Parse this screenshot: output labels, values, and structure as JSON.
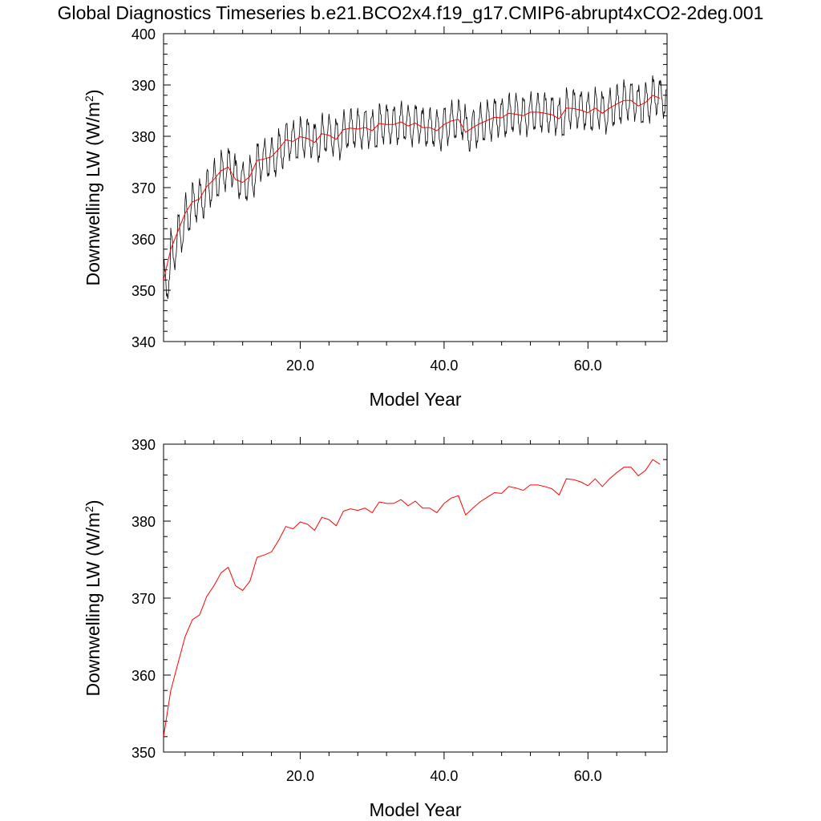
{
  "title": "Global Diagnostics Timeseries b.e21.BCO2x4.f19_g17.CMIP6-abrupt4xCO2-2deg.001",
  "colors": {
    "monthly": "#000000",
    "annual": "#ff0000"
  },
  "chart_data": [
    {
      "type": "line",
      "xlabel": "Model Year",
      "ylabel": "Downwelling LW (W/m2)",
      "ylabel_main": "Downwelling LW (W/m",
      "ylabel_sup": "2",
      "ylabel_end": ")",
      "xlim": [
        1,
        71
      ],
      "ylim": [
        340,
        400
      ],
      "xticks": [
        20,
        40,
        60
      ],
      "xtick_labels": [
        "20.0",
        "40.0",
        "60.0"
      ],
      "yticks": [
        340,
        350,
        360,
        370,
        380,
        390,
        400
      ],
      "ytick_labels": [
        "340",
        "350",
        "360",
        "370",
        "380",
        "390",
        "400"
      ],
      "grid": false,
      "series": [
        {
          "style": "monthly",
          "x_start": 1.0,
          "x_step": 0.08333,
          "values_description": "monthly values: annual mean plus seasonal cycle (~±3.5 W/m2)",
          "annual_means": [
            352,
            358,
            361.5,
            365,
            367.2,
            367.8,
            370.2,
            371.6,
            373.3,
            374.0,
            371.6,
            371.0,
            372.2,
            375.3,
            375.6,
            376.0,
            377.5,
            379.3,
            379.0,
            379.9,
            379.6,
            378.8,
            380.5,
            380.2,
            379.4,
            381.3,
            381.6,
            381.4,
            381.7,
            381.1,
            382.5,
            382.3,
            382.3,
            382.8,
            382.0,
            382.6,
            381.7,
            381.7,
            381.1,
            382.3,
            383.0,
            383.3,
            380.8,
            381.7,
            382.5,
            383.1,
            383.7,
            383.6,
            384.5,
            384.3,
            384.0,
            384.7,
            384.7,
            384.5,
            384.2,
            383.4,
            385.5,
            385.4,
            385.1,
            384.6,
            385.5,
            384.5,
            385.5,
            386.3,
            387.0,
            387.0,
            385.9,
            386.6,
            388.0,
            387.4
          ],
          "seasonal_amplitude": 3.5
        },
        {
          "style": "annual",
          "x_start": 1.0,
          "x_step": 1.0,
          "values": [
            352,
            358,
            361.5,
            365,
            367.2,
            367.8,
            370.2,
            371.6,
            373.3,
            374.0,
            371.6,
            371.0,
            372.2,
            375.3,
            375.6,
            376.0,
            377.5,
            379.3,
            379.0,
            379.9,
            379.6,
            378.8,
            380.5,
            380.2,
            379.4,
            381.3,
            381.6,
            381.4,
            381.7,
            381.1,
            382.5,
            382.3,
            382.3,
            382.8,
            382.0,
            382.6,
            381.7,
            381.7,
            381.1,
            382.3,
            383.0,
            383.3,
            380.8,
            381.7,
            382.5,
            383.1,
            383.7,
            383.6,
            384.5,
            384.3,
            384.0,
            384.7,
            384.7,
            384.5,
            384.2,
            383.4,
            385.5,
            385.4,
            385.1,
            384.6,
            385.5,
            384.5,
            385.5,
            386.3,
            387.0,
            387.0,
            385.9,
            386.6,
            388.0,
            387.4
          ]
        }
      ]
    },
    {
      "type": "line",
      "xlabel": "Model Year",
      "ylabel": "Downwelling LW (W/m2)",
      "ylabel_main": "Downwelling LW (W/m",
      "ylabel_sup": "2",
      "ylabel_end": ")",
      "xlim": [
        1,
        71
      ],
      "ylim": [
        350,
        390
      ],
      "xticks": [
        20,
        40,
        60
      ],
      "xtick_labels": [
        "20.0",
        "40.0",
        "60.0"
      ],
      "yticks": [
        350,
        360,
        370,
        380,
        390
      ],
      "ytick_labels": [
        "350",
        "360",
        "370",
        "380",
        "390"
      ],
      "grid": false,
      "series": [
        {
          "style": "annual",
          "x_start": 1.0,
          "x_step": 1.0,
          "values": [
            352,
            358,
            361.5,
            365,
            367.2,
            367.8,
            370.2,
            371.6,
            373.3,
            374.0,
            371.6,
            371.0,
            372.2,
            375.3,
            375.6,
            376.0,
            377.5,
            379.3,
            379.0,
            379.9,
            379.6,
            378.8,
            380.5,
            380.2,
            379.4,
            381.3,
            381.6,
            381.4,
            381.7,
            381.1,
            382.5,
            382.3,
            382.3,
            382.8,
            382.0,
            382.6,
            381.7,
            381.7,
            381.1,
            382.3,
            383.0,
            383.3,
            380.8,
            381.7,
            382.5,
            383.1,
            383.7,
            383.6,
            384.5,
            384.3,
            384.0,
            384.7,
            384.7,
            384.5,
            384.2,
            383.4,
            385.5,
            385.4,
            385.1,
            384.6,
            385.5,
            384.5,
            385.5,
            386.3,
            387.0,
            387.0,
            385.9,
            386.6,
            388.0,
            387.4
          ]
        }
      ]
    }
  ]
}
